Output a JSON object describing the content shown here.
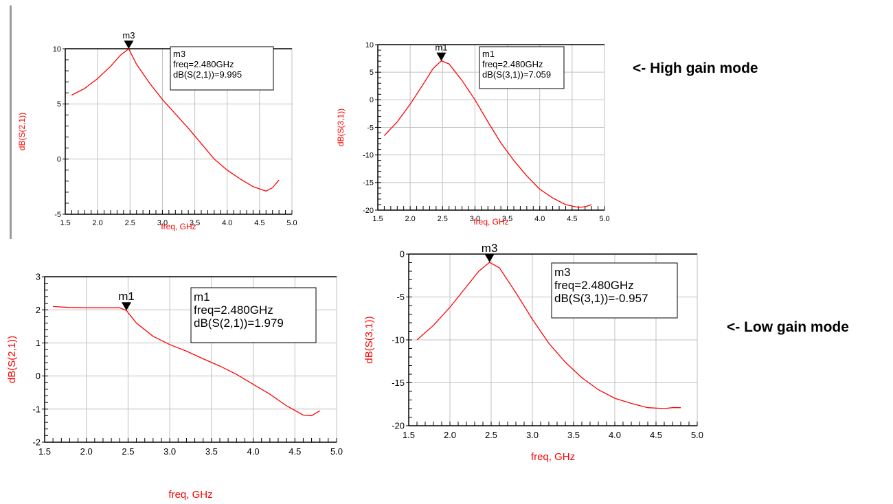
{
  "mode_labels": {
    "high": "<- High gain mode",
    "low": "<- Low gain mode"
  },
  "colors": {
    "trace": "#ff0000",
    "grid": "#c0c0c0",
    "axis_text": "#000000",
    "label": "#ff0000"
  },
  "chart_data": [
    {
      "type": "line",
      "xlabel": "freq, GHz",
      "ylabel": "dB(S(2,1))",
      "xlim": [
        1.5,
        5.0
      ],
      "ylim": [
        -5,
        10
      ],
      "xticks": [
        "1.5",
        "2.0",
        "2.5",
        "3.0",
        "3.5",
        "4.0",
        "4.5",
        "5.0"
      ],
      "yticks": [
        "-5",
        "0",
        "5",
        "10"
      ],
      "grid": true,
      "series": [
        {
          "x": [
            1.6,
            1.8,
            2.0,
            2.2,
            2.35,
            2.48,
            2.6,
            2.8,
            3.0,
            3.2,
            3.4,
            3.6,
            3.8,
            4.0,
            4.2,
            4.4,
            4.6,
            4.7,
            4.8
          ],
          "y": [
            5.8,
            6.4,
            7.3,
            8.4,
            9.4,
            9.995,
            8.6,
            6.9,
            5.4,
            4.1,
            2.8,
            1.4,
            0.0,
            -1.0,
            -1.8,
            -2.5,
            -2.9,
            -2.6,
            -1.9
          ]
        }
      ],
      "marker": {
        "name": "m3",
        "x": 2.48,
        "y": 9.995,
        "lines": [
          "m3",
          "freq=2.480GHz",
          "dB(S(2,1))=9.995"
        ]
      }
    },
    {
      "type": "line",
      "xlabel": "freq, GHz",
      "ylabel": "dB(S(3,1))",
      "xlim": [
        1.5,
        5.0
      ],
      "ylim": [
        -20,
        10
      ],
      "xticks": [
        "1.5",
        "2.0",
        "2.5",
        "3.0",
        "3.5",
        "4.0",
        "4.5",
        "5.0"
      ],
      "yticks": [
        "-20",
        "-15",
        "-10",
        "-5",
        "0",
        "5",
        "10"
      ],
      "grid": true,
      "series": [
        {
          "x": [
            1.6,
            1.8,
            2.0,
            2.2,
            2.35,
            2.48,
            2.6,
            2.8,
            3.0,
            3.2,
            3.4,
            3.6,
            3.8,
            4.0,
            4.2,
            4.4,
            4.6,
            4.7,
            4.8
          ],
          "y": [
            -6.5,
            -4.0,
            -0.8,
            2.8,
            5.6,
            7.059,
            6.5,
            3.5,
            0.0,
            -4.0,
            -7.8,
            -11.0,
            -13.8,
            -16.2,
            -17.8,
            -19.0,
            -19.5,
            -19.4,
            -19.0
          ]
        }
      ],
      "marker": {
        "name": "m1",
        "x": 2.48,
        "y": 7.059,
        "lines": [
          "m1",
          "freq=2.480GHz",
          "dB(S(3,1))=7.059"
        ]
      }
    },
    {
      "type": "line",
      "xlabel": "freq, GHz",
      "ylabel": "dB(S(2,1))",
      "xlim": [
        1.5,
        5.0
      ],
      "ylim": [
        -2,
        3
      ],
      "xticks": [
        "1.5",
        "2.0",
        "2.5",
        "3.0",
        "3.5",
        "4.0",
        "4.5",
        "5.0"
      ],
      "yticks": [
        "-2",
        "-1",
        "0",
        "1",
        "2",
        "3"
      ],
      "grid": true,
      "series": [
        {
          "x": [
            1.6,
            1.8,
            2.0,
            2.2,
            2.4,
            2.48,
            2.6,
            2.8,
            3.0,
            3.2,
            3.4,
            3.6,
            3.8,
            4.0,
            4.2,
            4.4,
            4.6,
            4.7,
            4.8
          ],
          "y": [
            2.1,
            2.07,
            2.06,
            2.06,
            2.06,
            1.979,
            1.6,
            1.2,
            0.95,
            0.75,
            0.52,
            0.3,
            0.05,
            -0.25,
            -0.55,
            -0.9,
            -1.18,
            -1.2,
            -1.05
          ]
        }
      ],
      "marker": {
        "name": "m1",
        "x": 2.48,
        "y": 1.979,
        "lines": [
          "m1",
          "freq=2.480GHz",
          "dB(S(2,1))=1.979"
        ]
      }
    },
    {
      "type": "line",
      "xlabel": "freq, GHz",
      "ylabel": "dB(S(3,1))",
      "xlim": [
        1.5,
        5.0
      ],
      "ylim": [
        -20,
        0
      ],
      "xticks": [
        "1.5",
        "2.0",
        "2.5",
        "3.0",
        "3.5",
        "4.0",
        "4.5",
        "5.0"
      ],
      "yticks": [
        "-20",
        "-15",
        "-10",
        "-5",
        "0"
      ],
      "grid": true,
      "series": [
        {
          "x": [
            1.6,
            1.8,
            2.0,
            2.2,
            2.35,
            2.48,
            2.6,
            2.8,
            3.0,
            3.2,
            3.4,
            3.6,
            3.8,
            4.0,
            4.2,
            4.4,
            4.6,
            4.7,
            4.8
          ],
          "y": [
            -10.0,
            -8.3,
            -6.2,
            -3.8,
            -2.0,
            -0.957,
            -1.6,
            -4.5,
            -7.6,
            -10.4,
            -12.6,
            -14.4,
            -15.8,
            -16.8,
            -17.4,
            -17.9,
            -18.0,
            -17.9,
            -17.9
          ]
        }
      ],
      "marker": {
        "name": "m3",
        "x": 2.48,
        "y": -0.957,
        "lines": [
          "m3",
          "freq=2.480GHz",
          "dB(S(3,1))=-0.957"
        ]
      }
    }
  ]
}
